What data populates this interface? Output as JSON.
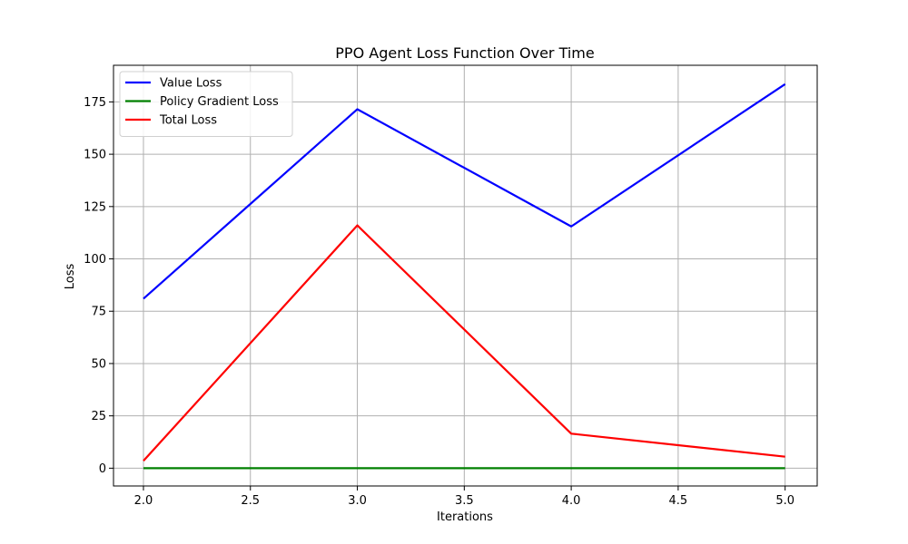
{
  "chart_data": {
    "type": "line",
    "title": "PPO Agent Loss Function Over Time",
    "xlabel": "Iterations",
    "ylabel": "Loss",
    "x": [
      2.0,
      3.0,
      4.0,
      5.0
    ],
    "xlim": [
      1.86,
      5.15
    ],
    "ylim": [
      -8.5,
      192.5
    ],
    "xticks": [
      2.0,
      2.5,
      3.0,
      3.5,
      4.0,
      4.5,
      5.0
    ],
    "xtick_labels": [
      "2.0",
      "2.5",
      "3.0",
      "3.5",
      "4.0",
      "4.5",
      "5.0"
    ],
    "yticks": [
      0,
      25,
      50,
      75,
      100,
      125,
      150,
      175
    ],
    "ytick_labels": [
      "0",
      "25",
      "50",
      "75",
      "100",
      "125",
      "150",
      "175"
    ],
    "grid": true,
    "legend_position": "top-left",
    "series": [
      {
        "name": "Value Loss",
        "color": "#0000ff",
        "values": [
          81,
          171.5,
          115.5,
          183.5
        ]
      },
      {
        "name": "Policy Gradient Loss",
        "color": "#008000",
        "values": [
          0,
          0,
          0,
          0
        ]
      },
      {
        "name": "Total Loss",
        "color": "#ff0000",
        "values": [
          3.5,
          116,
          16.5,
          5.5
        ]
      }
    ]
  }
}
